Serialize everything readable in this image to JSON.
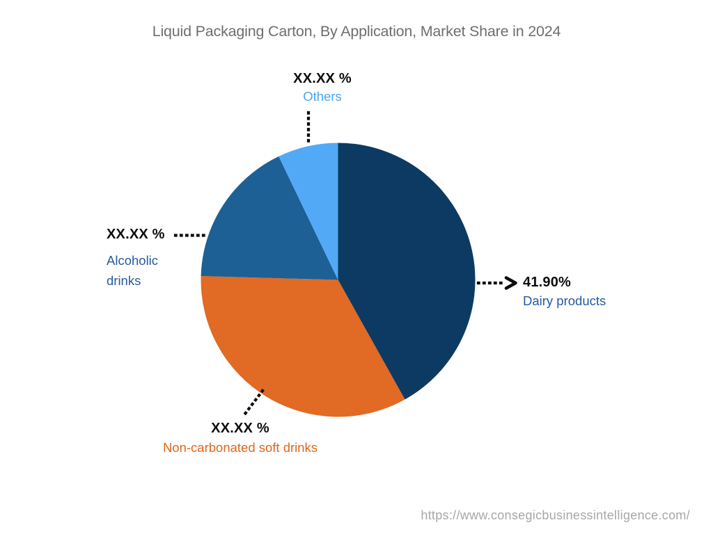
{
  "page": {
    "source_url": "https://www.consegicbusinessintelligence.com/"
  },
  "chart_data": {
    "type": "pie",
    "title": "Liquid Packaging Carton, By Application, Market Share in 2024",
    "start_angle_deg": 0,
    "direction": "clockwise",
    "legend_position": "none",
    "masked_value_placeholder": "XX.XX %",
    "slices": [
      {
        "id": "dairy-products",
        "label": "Dairy products",
        "value_pct": 41.9,
        "value_display": "41.90%",
        "color": "#0d3a62",
        "label_color": "#2159a3"
      },
      {
        "id": "non-carbonated-soft-drinks",
        "label": "Non-carbonated soft drinks",
        "value_pct": 33.54,
        "value_display": "XX.XX %",
        "color": "#e16a24",
        "label_color": "#e0661c"
      },
      {
        "id": "alcoholic-drinks",
        "label": "Alcoholic drinks",
        "value_pct": 17.44,
        "value_display": "XX.XX %",
        "color": "#1d6095",
        "label_color": "#255a9e"
      },
      {
        "id": "others",
        "label": "Others",
        "value_pct": 7.12,
        "value_display": "XX.XX %",
        "color": "#52aaf7",
        "label_color": "#4aa5f2"
      }
    ]
  }
}
